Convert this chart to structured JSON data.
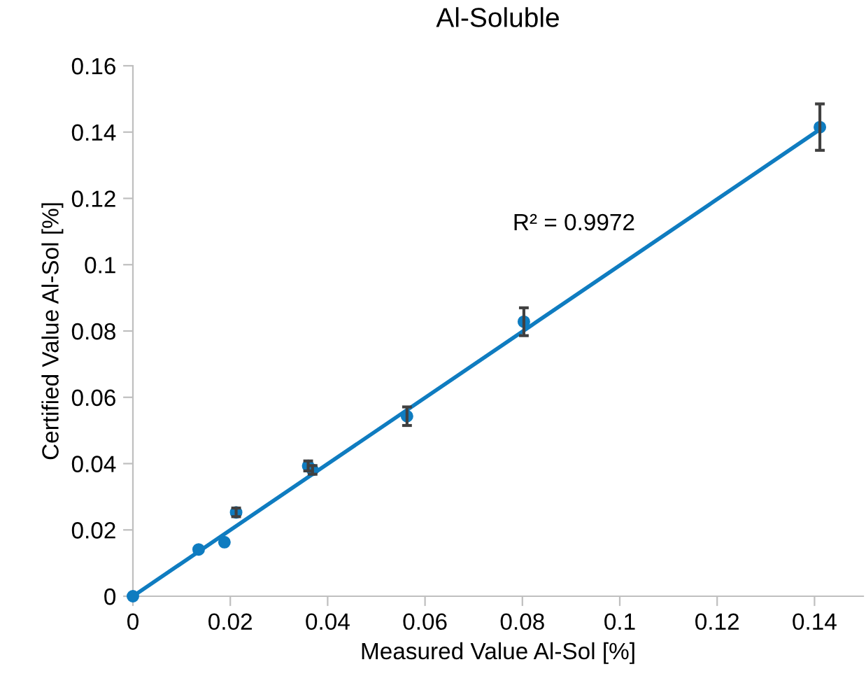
{
  "chart_data": {
    "type": "scatter",
    "title": "Al-Soluble",
    "xlabel": "Measured Value Al-Sol [%]",
    "ylabel": "Certified Value Al-Sol [%]",
    "series": [
      {
        "color": "#0f7cc0",
        "marker": "circle",
        "x": [
          0,
          0.0135,
          0.0188,
          0.0212,
          0.036,
          0.0369,
          0.0563,
          0.0803,
          0.1411
        ],
        "values": [
          0,
          0.0141,
          0.0163,
          0.0253,
          0.0393,
          0.0381,
          0.0543,
          0.0828,
          0.1415
        ],
        "errors": [
          null,
          null,
          null,
          0.0013,
          0.0015,
          0.0013,
          0.0028,
          0.0042,
          0.007
        ]
      },
      {
        "type": "line",
        "marker": "none",
        "color": "#0f7cc0",
        "x": [
          0,
          0.1411
        ],
        "values": [
          0,
          0.1408
        ]
      }
    ],
    "annotations": [
      "R² = 0.9972"
    ],
    "xlim": [
      0,
      0.15
    ],
    "xticks": [
      0,
      0.02,
      0.04,
      0.06,
      0.08,
      0.1,
      0.12,
      0.14
    ],
    "ylim": [
      0,
      0.16
    ],
    "yticks": [
      0,
      0.02,
      0.04,
      0.06,
      0.08,
      0.1,
      0.12,
      0.14,
      0.16
    ],
    "grid": false,
    "legend": false
  }
}
